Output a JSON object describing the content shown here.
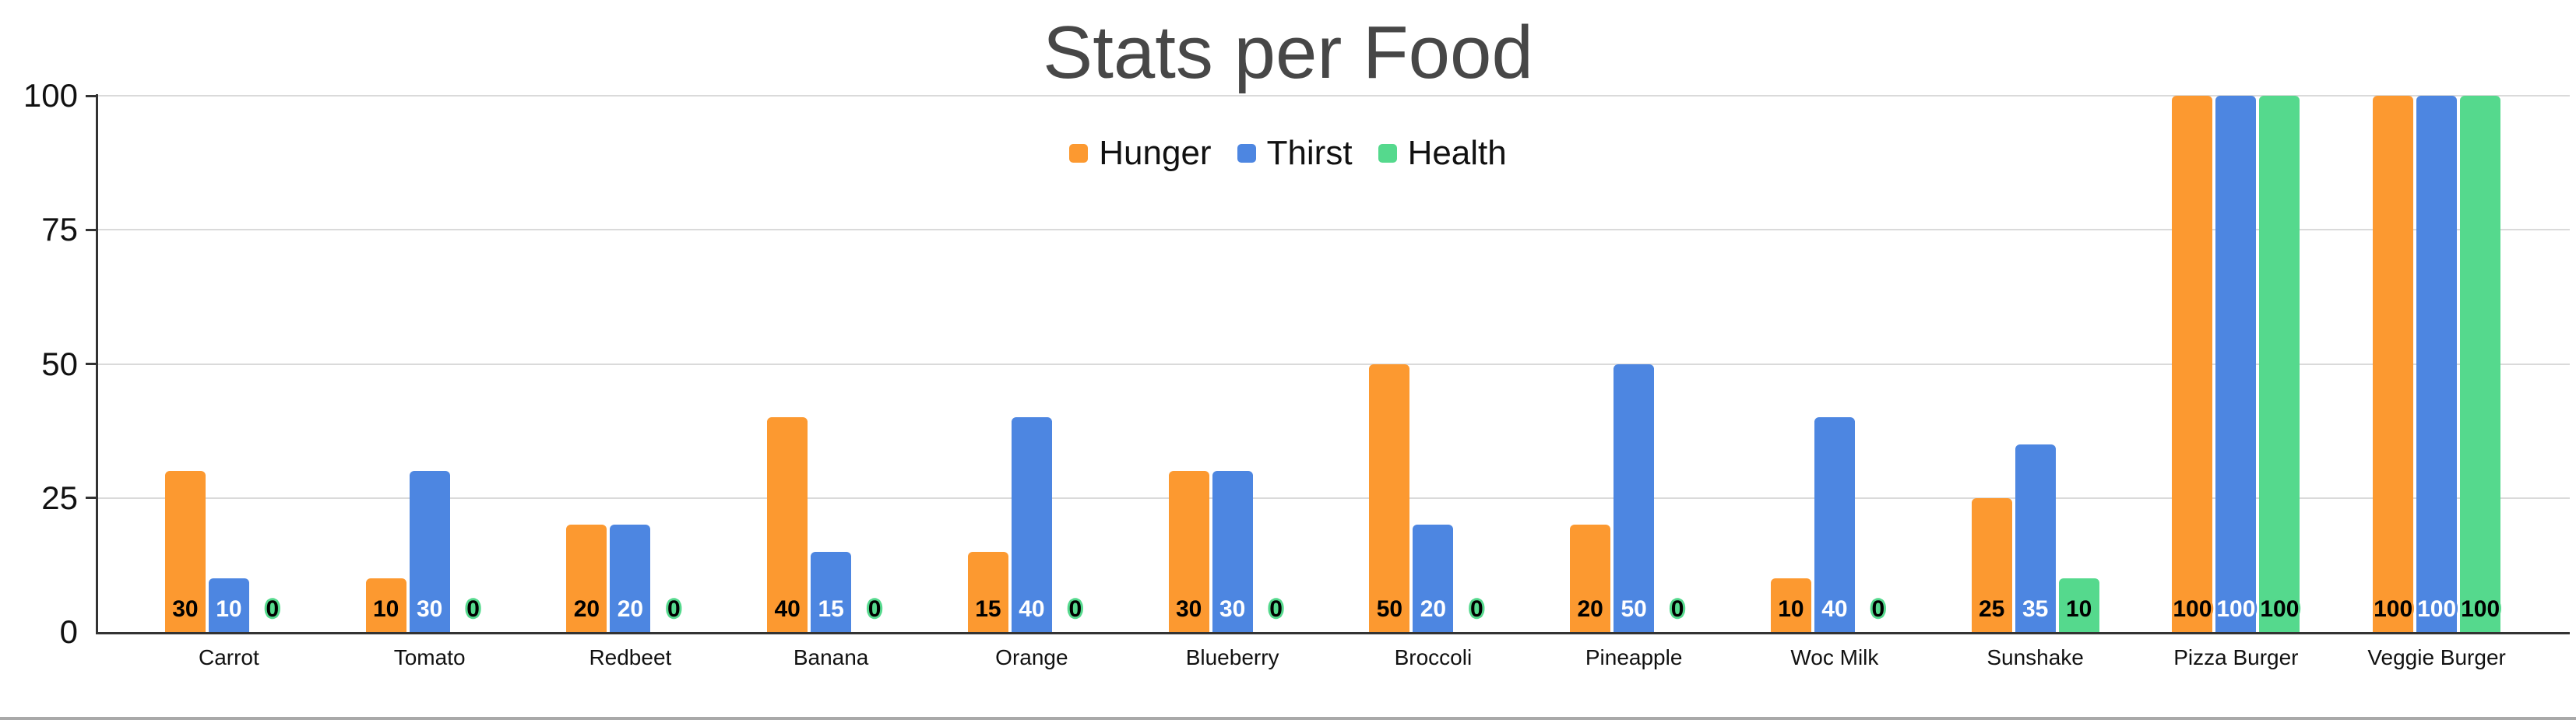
{
  "style": {
    "title_color": "#474747",
    "text_color": "#111111",
    "grid_color": "#DADADA",
    "axis_color": "#333333",
    "bottom_border_color": "#A9A9A9",
    "background_color": "#FFFFFF"
  },
  "chart_data": {
    "type": "bar",
    "title": "Stats per Food",
    "legend_position": "top",
    "grid": true,
    "categories": [
      "Carrot",
      "Tomato",
      "Redbeet",
      "Banana",
      "Orange",
      "Blueberry",
      "Broccoli",
      "Pineapple",
      "Woc Milk",
      "Sunshake",
      "Pizza Burger",
      "Veggie Burger"
    ],
    "series": [
      {
        "name": "Hunger",
        "color": "#FC9930",
        "label_text_color": "#000000",
        "values": [
          30,
          10,
          20,
          40,
          15,
          30,
          50,
          20,
          10,
          25,
          100,
          100
        ]
      },
      {
        "name": "Thirst",
        "color": "#4D86E1",
        "label_text_color": "#FFFFFF",
        "values": [
          10,
          30,
          20,
          15,
          40,
          30,
          20,
          50,
          40,
          35,
          100,
          100
        ]
      },
      {
        "name": "Health",
        "color": "#55D98D",
        "label_text_color": "#000000",
        "values": [
          0,
          0,
          0,
          0,
          0,
          0,
          0,
          0,
          0,
          10,
          100,
          100
        ]
      }
    ],
    "y_axis": {
      "min": 0,
      "max": 100,
      "ticks": [
        0,
        25,
        50,
        75,
        100
      ]
    }
  }
}
